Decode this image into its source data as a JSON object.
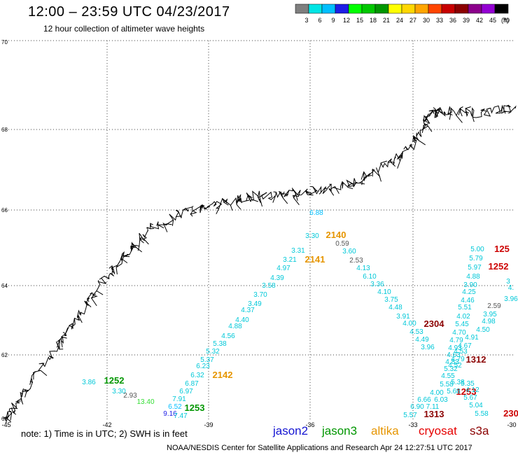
{
  "header": {
    "title": "12:00 – 23:59 UTC 04/23/2017",
    "subtitle": "12 hour collection of altimeter wave heights"
  },
  "legend": {
    "colors": [
      "#7f7f7f",
      "#00e5e5",
      "#00bfff",
      "#1e1ee6",
      "#00ff00",
      "#00c800",
      "#009600",
      "#ffff00",
      "#ffd700",
      "#ffa500",
      "#ff4500",
      "#c80000",
      "#8b0000",
      "#8b008b",
      "#9400d3",
      "#000000"
    ],
    "labels": [
      "3",
      "6",
      "9",
      "12",
      "15",
      "18",
      "21",
      "24",
      "27",
      "30",
      "33",
      "36",
      "39",
      "42",
      "45",
      "70"
    ],
    "unit": "(ft)"
  },
  "axes": {
    "lat_labels": [
      "70",
      "68",
      "66",
      "64",
      "62",
      "60"
    ],
    "lon_labels": [
      "-45",
      "-42",
      "-39",
      "-36",
      "-33",
      "-30"
    ]
  },
  "observations": [
    {
      "text": "6.88",
      "color": "#00bfff"
    },
    {
      "text": "3.30",
      "color": "#00c8d8"
    },
    {
      "text": "2140",
      "color": "#e69500"
    },
    {
      "text": "0.59",
      "color": "#555555"
    },
    {
      "text": "3.31",
      "color": "#00c8d8"
    },
    {
      "text": "3.60",
      "color": "#00c8d8"
    },
    {
      "text": "3.21",
      "color": "#00c8d8"
    },
    {
      "text": "2141",
      "color": "#e69500"
    },
    {
      "text": "2.53",
      "color": "#555555"
    },
    {
      "text": "4.97",
      "color": "#00c8d8"
    },
    {
      "text": "4.13",
      "color": "#00c8d8"
    },
    {
      "text": "4.39",
      "color": "#00c8d8"
    },
    {
      "text": "6.10",
      "color": "#00c8d8"
    },
    {
      "text": "3.58",
      "color": "#00c8d8"
    },
    {
      "text": "3.36",
      "color": "#00c8d8"
    },
    {
      "text": "3.70",
      "color": "#00c8d8"
    },
    {
      "text": "4.10",
      "color": "#00c8d8"
    },
    {
      "text": "3.49",
      "color": "#00c8d8"
    },
    {
      "text": "3.75",
      "color": "#00c8d8"
    },
    {
      "text": "4.37",
      "color": "#00c8d8"
    },
    {
      "text": "4.48",
      "color": "#00c8d8"
    },
    {
      "text": "4.40",
      "color": "#00c8d8"
    },
    {
      "text": "3.91",
      "color": "#00c8d8"
    },
    {
      "text": "4.88",
      "color": "#00c8d8"
    },
    {
      "text": "4.00",
      "color": "#00c8d8"
    },
    {
      "text": "4.56",
      "color": "#00c8d8"
    },
    {
      "text": "4.53",
      "color": "#00c8d8"
    },
    {
      "text": "5.38",
      "color": "#00c8d8"
    },
    {
      "text": "4.49",
      "color": "#00c8d8"
    },
    {
      "text": "5.32",
      "color": "#00c8d8"
    },
    {
      "text": "3.96",
      "color": "#00c8d8"
    },
    {
      "text": "5.37",
      "color": "#00c8d8"
    },
    {
      "text": "6.23",
      "color": "#00c8d8"
    },
    {
      "text": "6.32",
      "color": "#00c8d8"
    },
    {
      "text": "2142",
      "color": "#e69500"
    },
    {
      "text": "6.87",
      "color": "#00c8d8"
    },
    {
      "text": "6.97",
      "color": "#00c8d8"
    },
    {
      "text": "7.91",
      "color": "#00c8d8"
    },
    {
      "text": "6.52",
      "color": "#00bfff"
    },
    {
      "text": "9.16",
      "color": "#1e1ee6"
    },
    {
      "text": "7.47",
      "color": "#00c8d8"
    },
    {
      "text": "1253",
      "color": "#009600"
    },
    {
      "text": "3.86",
      "color": "#00c8d8"
    },
    {
      "text": "1252",
      "color": "#009600"
    },
    {
      "text": "3.30",
      "color": "#00c8d8"
    },
    {
      "text": "2.93",
      "color": "#555555"
    },
    {
      "text": "13.40",
      "color": "#33dd33"
    },
    {
      "text": "2304",
      "color": "#8b0000"
    },
    {
      "text": "1312",
      "color": "#8b0000"
    },
    {
      "text": "1253",
      "color": "#cc0000"
    },
    {
      "text": "1313",
      "color": "#8b0000"
    },
    {
      "text": "125",
      "color": "#cc0000"
    },
    {
      "text": "1252",
      "color": "#cc0000"
    },
    {
      "text": "230",
      "color": "#cc0000"
    },
    {
      "text": "5.00",
      "color": "#00c8d8"
    },
    {
      "text": "5.79",
      "color": "#00c8d8"
    },
    {
      "text": "5.97",
      "color": "#00c8d8"
    },
    {
      "text": "4.88",
      "color": "#00c8d8"
    },
    {
      "text": "3.90",
      "color": "#00c8d8"
    },
    {
      "text": "4.25",
      "color": "#00c8d8"
    },
    {
      "text": "3.96",
      "color": "#00c8d8"
    },
    {
      "text": "4.46",
      "color": "#00c8d8"
    },
    {
      "text": "2.59",
      "color": "#555555"
    },
    {
      "text": "5.51",
      "color": "#00c8d8"
    },
    {
      "text": "3.95",
      "color": "#00c8d8"
    },
    {
      "text": "4.02",
      "color": "#00c8d8"
    },
    {
      "text": "4.98",
      "color": "#00c8d8"
    },
    {
      "text": "5.45",
      "color": "#00c8d8"
    },
    {
      "text": "4.50",
      "color": "#00c8d8"
    },
    {
      "text": "4.70",
      "color": "#00c8d8"
    },
    {
      "text": "4.91",
      "color": "#00c8d8"
    },
    {
      "text": "4.79",
      "color": "#00c8d8"
    },
    {
      "text": "4.67",
      "color": "#00c8d8"
    },
    {
      "text": "4.93",
      "color": "#00c8d8"
    },
    {
      "text": "4.53",
      "color": "#00c8d8"
    },
    {
      "text": "4.63",
      "color": "#00c8d8"
    },
    {
      "text": "4.79",
      "color": "#00c8d8"
    },
    {
      "text": "4.83",
      "color": "#00c8d8"
    },
    {
      "text": "4.52",
      "color": "#00c8d8"
    },
    {
      "text": "5.32",
      "color": "#00c8d8"
    },
    {
      "text": "4.55",
      "color": "#00c8d8"
    },
    {
      "text": "5.58",
      "color": "#00c8d8"
    },
    {
      "text": "5.38",
      "color": "#00c8d8"
    },
    {
      "text": "5.35",
      "color": "#00c8d8"
    },
    {
      "text": "4.00",
      "color": "#00c8d8"
    },
    {
      "text": "5.68",
      "color": "#00c8d8"
    },
    {
      "text": "4.12",
      "color": "#00c8d8"
    },
    {
      "text": "6.66",
      "color": "#00c8d8"
    },
    {
      "text": "6.03",
      "color": "#00c8d8"
    },
    {
      "text": "5.67",
      "color": "#00c8d8"
    },
    {
      "text": "6.90",
      "color": "#00c8d8"
    },
    {
      "text": "7.11",
      "color": "#00c8d8"
    },
    {
      "text": "5.04",
      "color": "#00c8d8"
    },
    {
      "text": "5.57",
      "color": "#00c8d8"
    },
    {
      "text": "5.58",
      "color": "#00c8d8"
    },
    {
      "text": "3",
      "color": "#00c8d8"
    },
    {
      "text": "4.",
      "color": "#00c8d8"
    }
  ],
  "footer": {
    "note": "note: 1) Time is in UTC; 2) SWH is in feet",
    "missions": [
      {
        "name": "jason2",
        "color": "#1414d2"
      },
      {
        "name": "jason3",
        "color": "#009600"
      },
      {
        "name": "altika",
        "color": "#e69500"
      },
      {
        "name": "cryosat",
        "color": "#e60000"
      },
      {
        "name": "s3a",
        "color": "#8b0000"
      }
    ],
    "credit": "NOAA/NESDIS Center for Satellite Applications and Research    Apr 24 12:27:51 UTC 2017"
  }
}
